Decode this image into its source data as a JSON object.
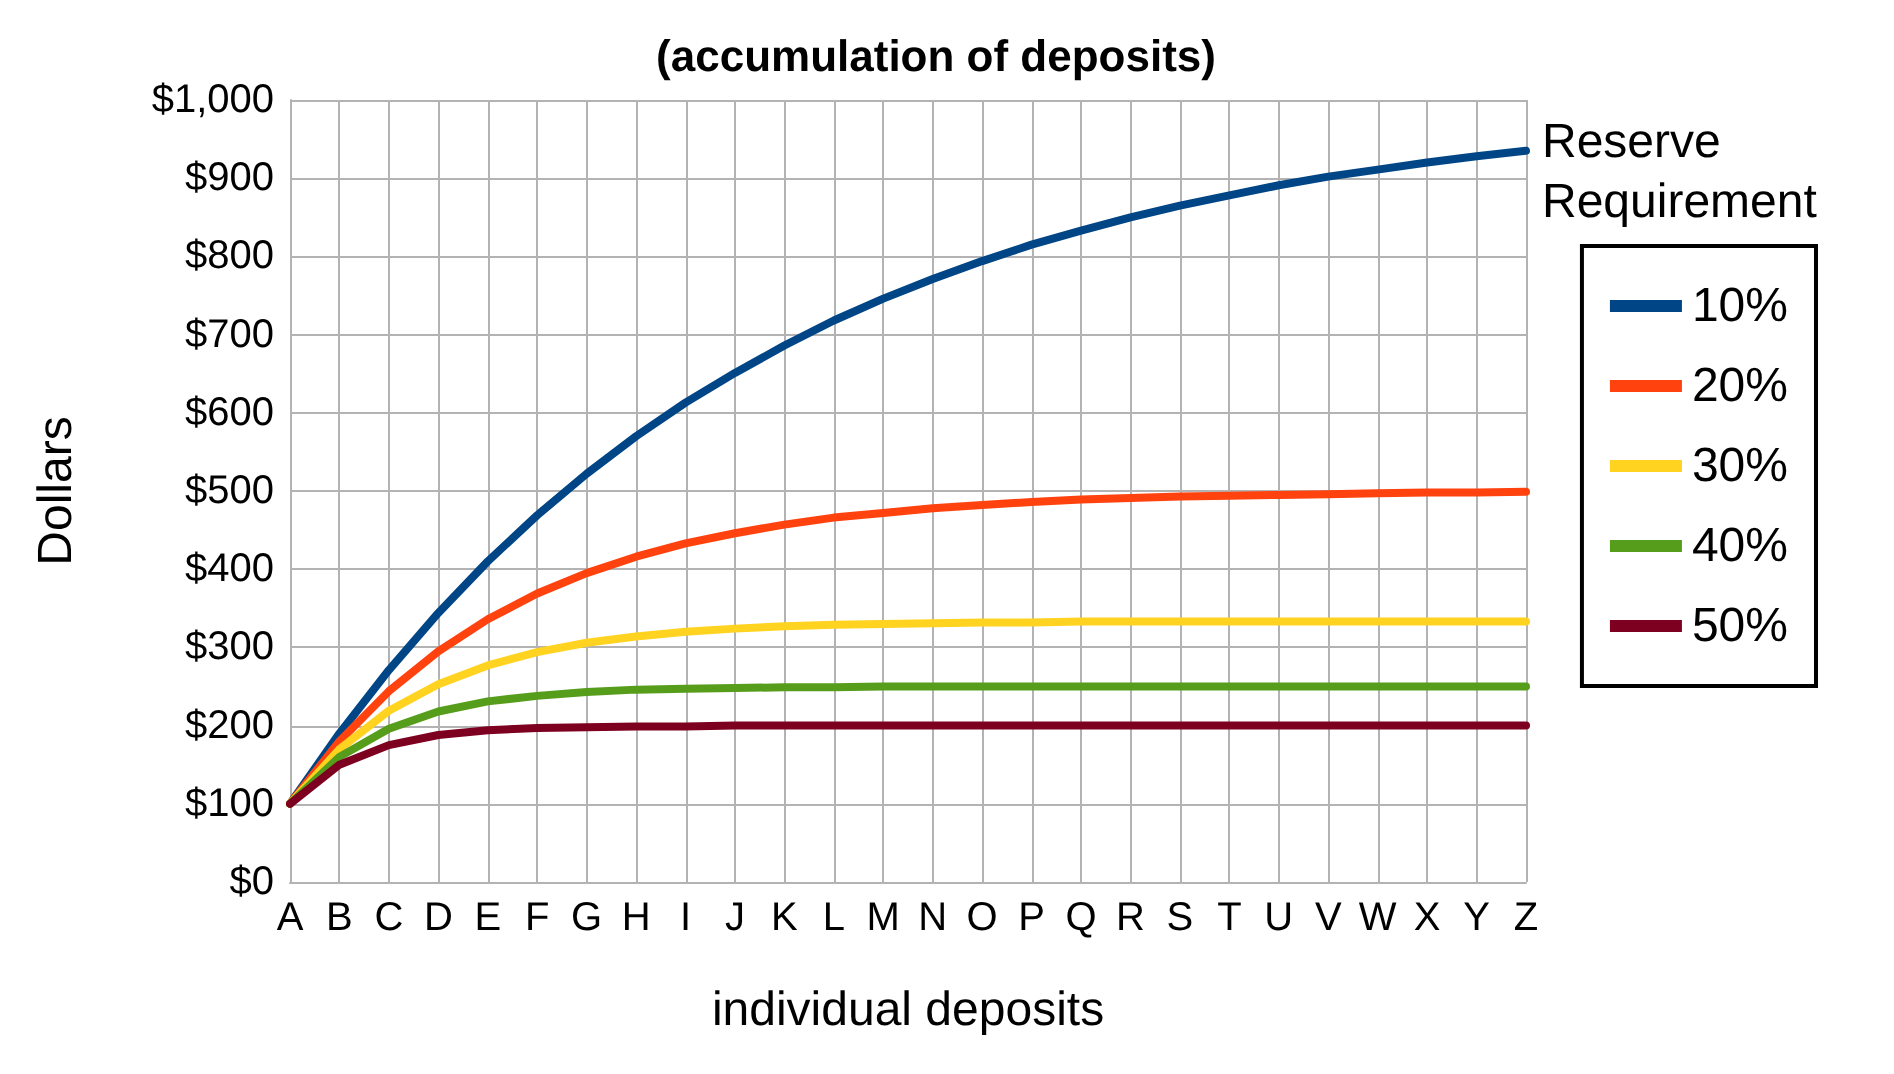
{
  "chart_data": {
    "type": "line",
    "title": "(accumulation of deposits)",
    "xlabel": "individual deposits",
    "ylabel": "Dollars",
    "legend_title": "Reserve Requirement",
    "categories": [
      "A",
      "B",
      "C",
      "D",
      "E",
      "F",
      "G",
      "H",
      "I",
      "J",
      "K",
      "L",
      "M",
      "N",
      "O",
      "P",
      "Q",
      "R",
      "S",
      "T",
      "U",
      "V",
      "W",
      "X",
      "Y",
      "Z"
    ],
    "series": [
      {
        "name": "10%",
        "color": "#004586",
        "values": [
          100,
          190,
          271,
          344,
          410,
          469,
          522,
          570,
          613,
          651,
          686,
          718,
          746,
          771,
          794,
          815,
          833,
          850,
          865,
          878,
          891,
          902,
          911,
          920,
          928,
          935
        ]
      },
      {
        "name": "20%",
        "color": "#ff420e",
        "values": [
          100,
          180,
          244,
          295,
          336,
          369,
          395,
          416,
          433,
          446,
          457,
          466,
          472,
          478,
          482,
          486,
          489,
          491,
          493,
          494,
          495,
          496,
          497,
          498,
          498,
          499
        ]
      },
      {
        "name": "30%",
        "color": "#ffd320",
        "values": [
          100,
          170,
          219,
          253,
          277,
          294,
          306,
          314,
          320,
          324,
          327,
          329,
          330,
          331,
          332,
          332,
          333,
          333,
          333,
          333,
          333,
          333,
          333,
          333,
          333,
          333
        ]
      },
      {
        "name": "40%",
        "color": "#579d1c",
        "values": [
          100,
          160,
          196,
          218,
          231,
          238,
          243,
          246,
          247,
          248,
          249,
          249,
          250,
          250,
          250,
          250,
          250,
          250,
          250,
          250,
          250,
          250,
          250,
          250,
          250,
          250
        ]
      },
      {
        "name": "50%",
        "color": "#7e0021",
        "values": [
          100,
          150,
          175,
          188,
          194,
          197,
          198,
          199,
          199,
          200,
          200,
          200,
          200,
          200,
          200,
          200,
          200,
          200,
          200,
          200,
          200,
          200,
          200,
          200,
          200,
          200
        ]
      }
    ],
    "ylim": [
      0,
      1000
    ],
    "yticks": [
      {
        "value": 0,
        "label": "$0"
      },
      {
        "value": 100,
        "label": "$100"
      },
      {
        "value": 200,
        "label": "$200"
      },
      {
        "value": 300,
        "label": "$300"
      },
      {
        "value": 400,
        "label": "$400"
      },
      {
        "value": 500,
        "label": "$500"
      },
      {
        "value": 600,
        "label": "$600"
      },
      {
        "value": 700,
        "label": "$700"
      },
      {
        "value": 800,
        "label": "$800"
      },
      {
        "value": 900,
        "label": "$900"
      },
      {
        "value": 1000,
        "label": "$1,000"
      }
    ],
    "grid": true,
    "legend": "right",
    "marker": "none",
    "line_style": "solid"
  }
}
